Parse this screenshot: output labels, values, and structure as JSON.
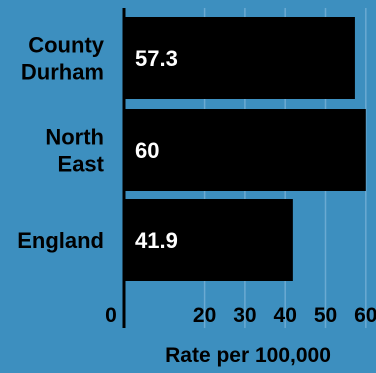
{
  "colors": {
    "background": "#3d8fbf",
    "bar": "#000000",
    "bar_text": "#ffffff",
    "text": "#000000",
    "gridline": "#6aaad2",
    "axis": "#000000"
  },
  "chart_data": {
    "type": "bar",
    "orientation": "horizontal",
    "categories": [
      [
        "County",
        "Durham"
      ],
      [
        "North",
        "East"
      ],
      [
        "England"
      ]
    ],
    "values": [
      57.3,
      60,
      41.9
    ],
    "value_labels": [
      "57.3",
      "60",
      "41.9"
    ],
    "xlabel": "Rate per 100,000",
    "xlim": [
      0,
      62
    ],
    "ticks": [
      0,
      20,
      30,
      40,
      50,
      60
    ],
    "tick_labels": [
      "0",
      "20",
      "30",
      "40",
      "50",
      "60"
    ],
    "grid": true
  }
}
